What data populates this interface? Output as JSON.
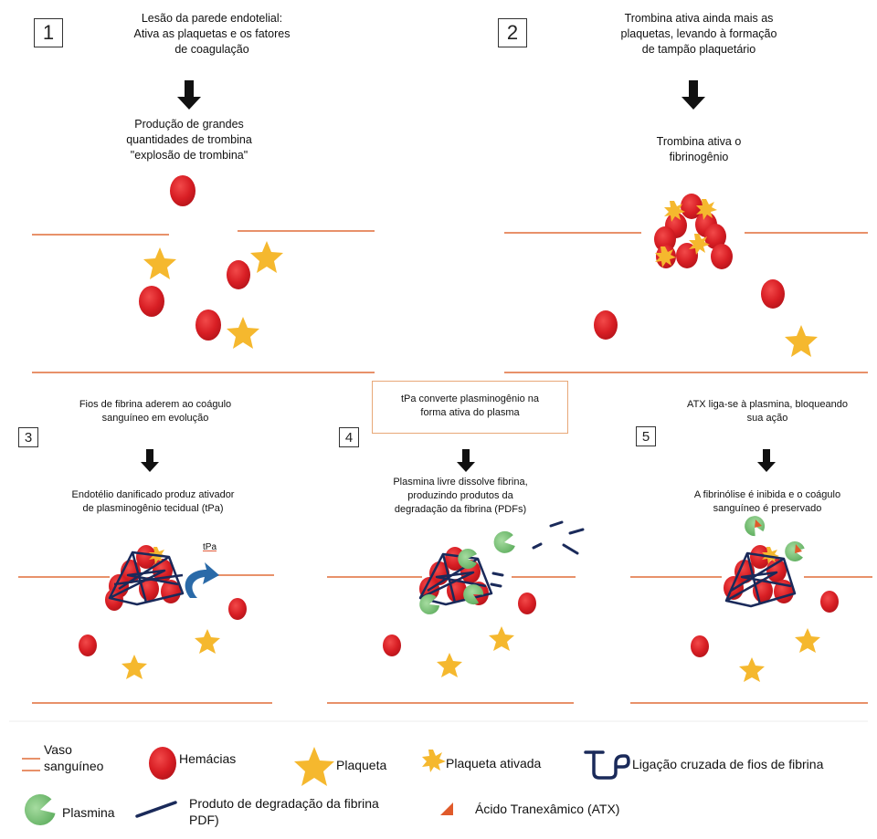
{
  "panel1": {
    "num": "1",
    "top_text": "Lesão da parede endotelial:\nAtiva as plaquetas e os fatores\nde coagulação",
    "mid_text": "Produção de grandes\nquantidades de trombina\n\"explosão de trombina\""
  },
  "panel2": {
    "num": "2",
    "top_text": "Trombina ativa ainda mais as\nplaquetas, levando à formação\nde tampão plaquetário",
    "mid_text": "Trombina ativa o\nfibrinogênio"
  },
  "panel3": {
    "num": "3",
    "top_text": "Fios de fibrina aderem ao coágulo\nsanguíneo em evolução",
    "mid_text": "Endotélio danificado produz ativador\nde plasminogênio tecidual (tPa)",
    "tpa_label": "tPa"
  },
  "panel4": {
    "num": "4",
    "top_text": "tPa converte plasminogênio na\nforma ativa do plasma",
    "mid_text": "Plasmina livre dissolve fibrina,\nproduzindo produtos da\ndegradação da fibrina (PDFs)"
  },
  "panel5": {
    "num": "5",
    "top_text": "ATX liga-se à plasmina, bloqueando\nsua ação",
    "mid_text": "A fibrinólise é inibida e o coágulo\nsanguíneo é preservado"
  },
  "legend": {
    "vessel": "Vaso\nsanguíneo",
    "rbc": "Hemácias",
    "platelet": "Plaqueta",
    "activated_platelet": "Plaqueta ativada",
    "fibrin": "Ligação cruzada de fios de fibrina",
    "plasmin": "Plasmina",
    "pdf": "Produto de degradação da fibrina\nPDF)",
    "atx": "Ácido Tranexâmico (ATX)"
  },
  "colors": {
    "rbc": "#e02a2a",
    "platelet": "#f5b82e",
    "vessel": "#e8916a",
    "fibrin": "#1a2a5a",
    "plasmin": "#7cc47c",
    "atx": "#e05a2a",
    "tpa_arrow": "#2a6aa8"
  }
}
